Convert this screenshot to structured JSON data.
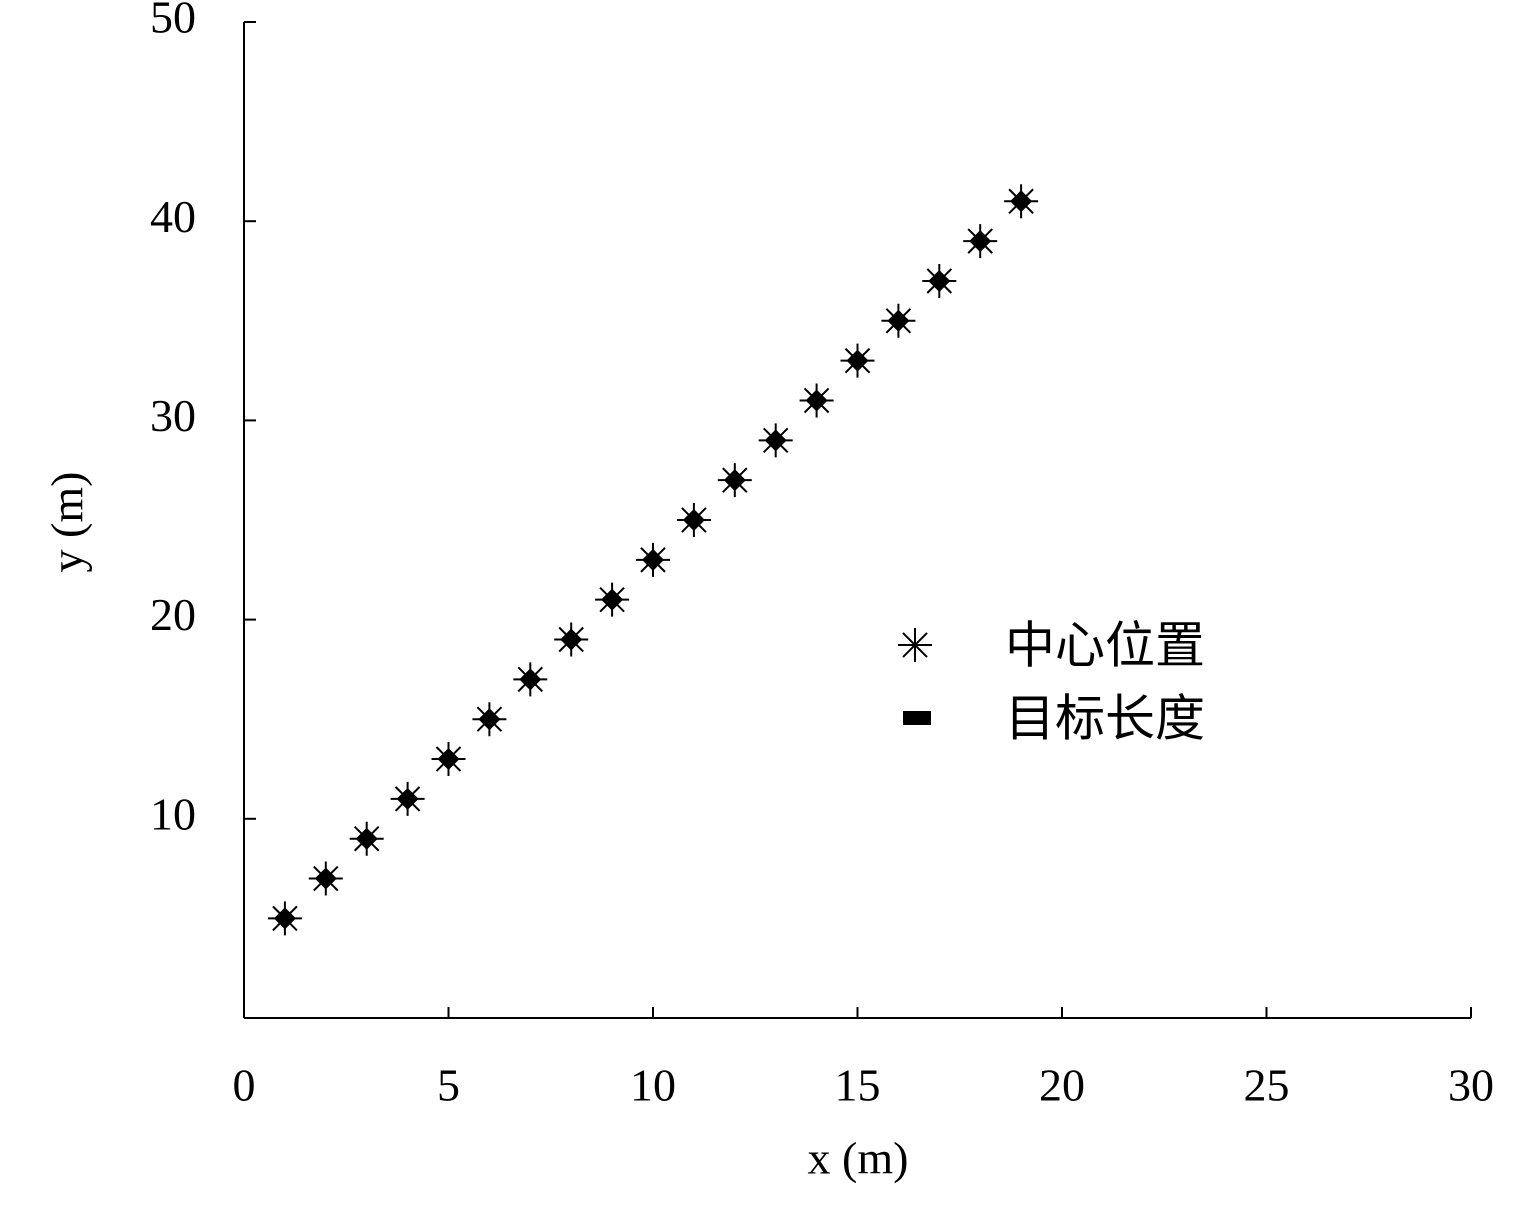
{
  "chart_data": {
    "type": "scatter",
    "xlabel": "x (m)",
    "ylabel": "y (m)",
    "xlim": [
      0,
      30
    ],
    "xticks": [
      0,
      5,
      10,
      15,
      20,
      25,
      30
    ],
    "ylim": [
      0,
      50
    ],
    "yticks": [
      10,
      20,
      30,
      40,
      50
    ],
    "legend": "center right",
    "series": [
      {
        "name": "中心位置",
        "marker": "asterisk",
        "color": "#000000",
        "x": [
          1,
          2,
          3,
          4,
          5,
          6,
          7,
          8,
          9,
          10,
          11,
          12,
          13,
          14,
          15,
          16,
          17,
          18,
          19
        ],
        "values": [
          5,
          7,
          9,
          11,
          13,
          15,
          17,
          19,
          21,
          23,
          25,
          27,
          29,
          31,
          33,
          35,
          37,
          39,
          41
        ]
      },
      {
        "name": "目标长度",
        "marker": "diamond",
        "color": "#000000",
        "x": [
          1,
          2,
          3,
          4,
          5,
          6,
          7,
          8,
          9,
          10,
          11,
          12,
          13,
          14,
          15,
          16,
          17,
          18,
          19
        ],
        "values": [
          5,
          7,
          9,
          11,
          13,
          15,
          17,
          19,
          21,
          23,
          25,
          27,
          29,
          31,
          33,
          35,
          37,
          39,
          41
        ]
      }
    ]
  }
}
